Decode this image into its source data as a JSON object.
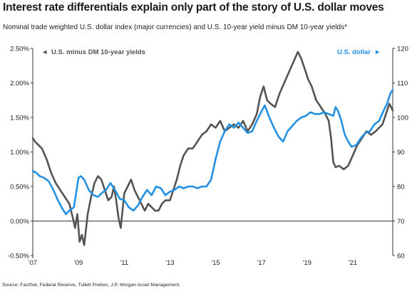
{
  "title": "Interest rate differentials explain only part of the story of U.S. dollar moves",
  "subtitle": "Nominal trade weighted U.S. dollar index (major currencies) and U.S. 10-year yield minus DM 10-year yields*",
  "source": "Source: FactSet, Federal Reserve, Tullett Prebon, J.P. Morgan Asset Management.",
  "colors": {
    "differential": "#545454",
    "dollar": "#2391e3",
    "axis": "#333333"
  },
  "chart_data": {
    "type": "line",
    "legend": [
      {
        "label": "U.S. minus DM 10-year yields",
        "marker": "◄",
        "axis": "left",
        "placement": "top-left"
      },
      {
        "label": "U.S. dollar",
        "marker": "►",
        "axis": "right",
        "placement": "top-right"
      }
    ],
    "x_axis": {
      "range": [
        2007.0,
        2022.75
      ],
      "ticks": [
        2007,
        2009,
        2011,
        2013,
        2015,
        2017,
        2019,
        2021
      ],
      "tick_labels": [
        "'07",
        "'09",
        "'11",
        "'13",
        "'15",
        "'17",
        "'19",
        "'21"
      ]
    },
    "y_left": {
      "range": [
        -0.5,
        2.5
      ],
      "ticks": [
        -0.5,
        0,
        0.5,
        1,
        1.5,
        2,
        2.5
      ],
      "tick_labels": [
        "-0.50%",
        "0.00%",
        "0.50%",
        "1.00%",
        "1.50%",
        "2.00%",
        "2.50%"
      ]
    },
    "y_right": {
      "range": [
        60,
        120
      ],
      "ticks": [
        60,
        70,
        80,
        90,
        100,
        110,
        120
      ],
      "tick_labels": [
        "60",
        "70",
        "80",
        "90",
        "100",
        "110",
        "120"
      ]
    },
    "series": [
      {
        "name": "U.S. minus DM 10-year yields",
        "axis": "left",
        "x": [
          2007.0,
          2007.1,
          2007.25,
          2007.4,
          2007.6,
          2007.8,
          2008.0,
          2008.2,
          2008.4,
          2008.6,
          2008.75,
          2008.85,
          2008.95,
          2009.05,
          2009.15,
          2009.25,
          2009.4,
          2009.55,
          2009.7,
          2009.85,
          2010.0,
          2010.15,
          2010.3,
          2010.45,
          2010.55,
          2010.65,
          2010.75,
          2010.85,
          2011.0,
          2011.15,
          2011.3,
          2011.45,
          2011.6,
          2011.75,
          2011.9,
          2012.05,
          2012.2,
          2012.35,
          2012.5,
          2012.65,
          2012.8,
          2013.0,
          2013.15,
          2013.3,
          2013.45,
          2013.6,
          2013.8,
          2014.0,
          2014.2,
          2014.4,
          2014.6,
          2014.8,
          2015.0,
          2015.2,
          2015.4,
          2015.6,
          2015.8,
          2016.0,
          2016.2,
          2016.4,
          2016.6,
          2016.8,
          2016.95,
          2017.1,
          2017.25,
          2017.4,
          2017.6,
          2017.8,
          2018.0,
          2018.2,
          2018.4,
          2018.6,
          2018.75,
          2018.9,
          2019.05,
          2019.2,
          2019.4,
          2019.6,
          2019.8,
          2019.95,
          2020.05,
          2020.15,
          2020.25,
          2020.4,
          2020.6,
          2020.8,
          2021.0,
          2021.2,
          2021.4,
          2021.6,
          2021.8,
          2022.0,
          2022.15,
          2022.3,
          2022.45,
          2022.6,
          2022.75
        ],
        "y": [
          1.2,
          1.15,
          1.1,
          1.05,
          0.9,
          0.7,
          0.55,
          0.45,
          0.35,
          0.25,
          0.05,
          -0.1,
          0.1,
          -0.3,
          -0.2,
          -0.35,
          0.1,
          0.35,
          0.55,
          0.65,
          0.6,
          0.45,
          0.3,
          0.35,
          0.5,
          0.3,
          0.05,
          -0.1,
          0.4,
          0.5,
          0.6,
          0.45,
          0.35,
          0.25,
          0.15,
          0.25,
          0.2,
          0.15,
          0.15,
          0.25,
          0.3,
          0.3,
          0.45,
          0.6,
          0.8,
          0.95,
          1.05,
          1.05,
          1.15,
          1.25,
          1.3,
          1.4,
          1.35,
          1.45,
          1.3,
          1.35,
          1.4,
          1.35,
          1.45,
          1.3,
          1.4,
          1.55,
          1.8,
          1.95,
          1.75,
          1.7,
          1.65,
          1.85,
          2.0,
          2.15,
          2.3,
          2.45,
          2.35,
          2.2,
          2.05,
          1.95,
          1.75,
          1.65,
          1.55,
          1.45,
          1.2,
          0.85,
          0.78,
          0.8,
          0.75,
          0.8,
          0.95,
          1.1,
          1.2,
          1.3,
          1.25,
          1.3,
          1.35,
          1.4,
          1.55,
          1.7,
          1.6
        ]
      },
      {
        "name": "U.S. dollar",
        "axis": "right",
        "x": [
          2007.0,
          2007.15,
          2007.3,
          2007.5,
          2007.7,
          2007.9,
          2008.1,
          2008.3,
          2008.45,
          2008.6,
          2008.8,
          2009.0,
          2009.1,
          2009.25,
          2009.45,
          2009.65,
          2009.85,
          2010.0,
          2010.2,
          2010.4,
          2010.6,
          2010.8,
          2011.0,
          2011.2,
          2011.4,
          2011.6,
          2011.8,
          2012.0,
          2012.2,
          2012.4,
          2012.6,
          2012.8,
          2013.0,
          2013.2,
          2013.4,
          2013.6,
          2013.8,
          2014.0,
          2014.2,
          2014.4,
          2014.6,
          2014.8,
          2015.0,
          2015.2,
          2015.4,
          2015.6,
          2015.8,
          2016.0,
          2016.2,
          2016.4,
          2016.6,
          2016.8,
          2016.95,
          2017.15,
          2017.35,
          2017.55,
          2017.75,
          2017.95,
          2018.15,
          2018.35,
          2018.55,
          2018.75,
          2018.95,
          2019.15,
          2019.35,
          2019.55,
          2019.75,
          2019.95,
          2020.15,
          2020.25,
          2020.35,
          2020.5,
          2020.65,
          2020.8,
          2020.95,
          2021.15,
          2021.35,
          2021.55,
          2021.75,
          2021.95,
          2022.15,
          2022.35,
          2022.5,
          2022.65,
          2022.75
        ],
        "y": [
          84.5,
          84,
          83,
          82.5,
          81.5,
          79,
          76,
          73.5,
          72,
          73,
          74,
          82.5,
          83,
          82,
          79,
          77.5,
          77,
          78,
          79,
          81,
          79,
          76.5,
          76,
          74,
          73,
          74.5,
          77,
          79,
          77.5,
          80,
          79.5,
          77.5,
          78.5,
          79,
          80,
          79.5,
          80,
          80,
          79.5,
          80,
          80,
          82,
          88,
          93,
          96,
          98,
          97,
          98.5,
          97,
          95.5,
          96,
          99,
          101,
          103.5,
          100,
          97,
          94.5,
          93,
          96,
          97.5,
          99,
          100,
          100.5,
          101.5,
          101,
          101,
          101.5,
          101,
          100.5,
          103,
          102,
          99,
          95,
          93,
          91.5,
          92,
          94,
          95.5,
          96,
          98,
          99,
          102,
          104,
          107,
          108
        ]
      }
    ]
  }
}
